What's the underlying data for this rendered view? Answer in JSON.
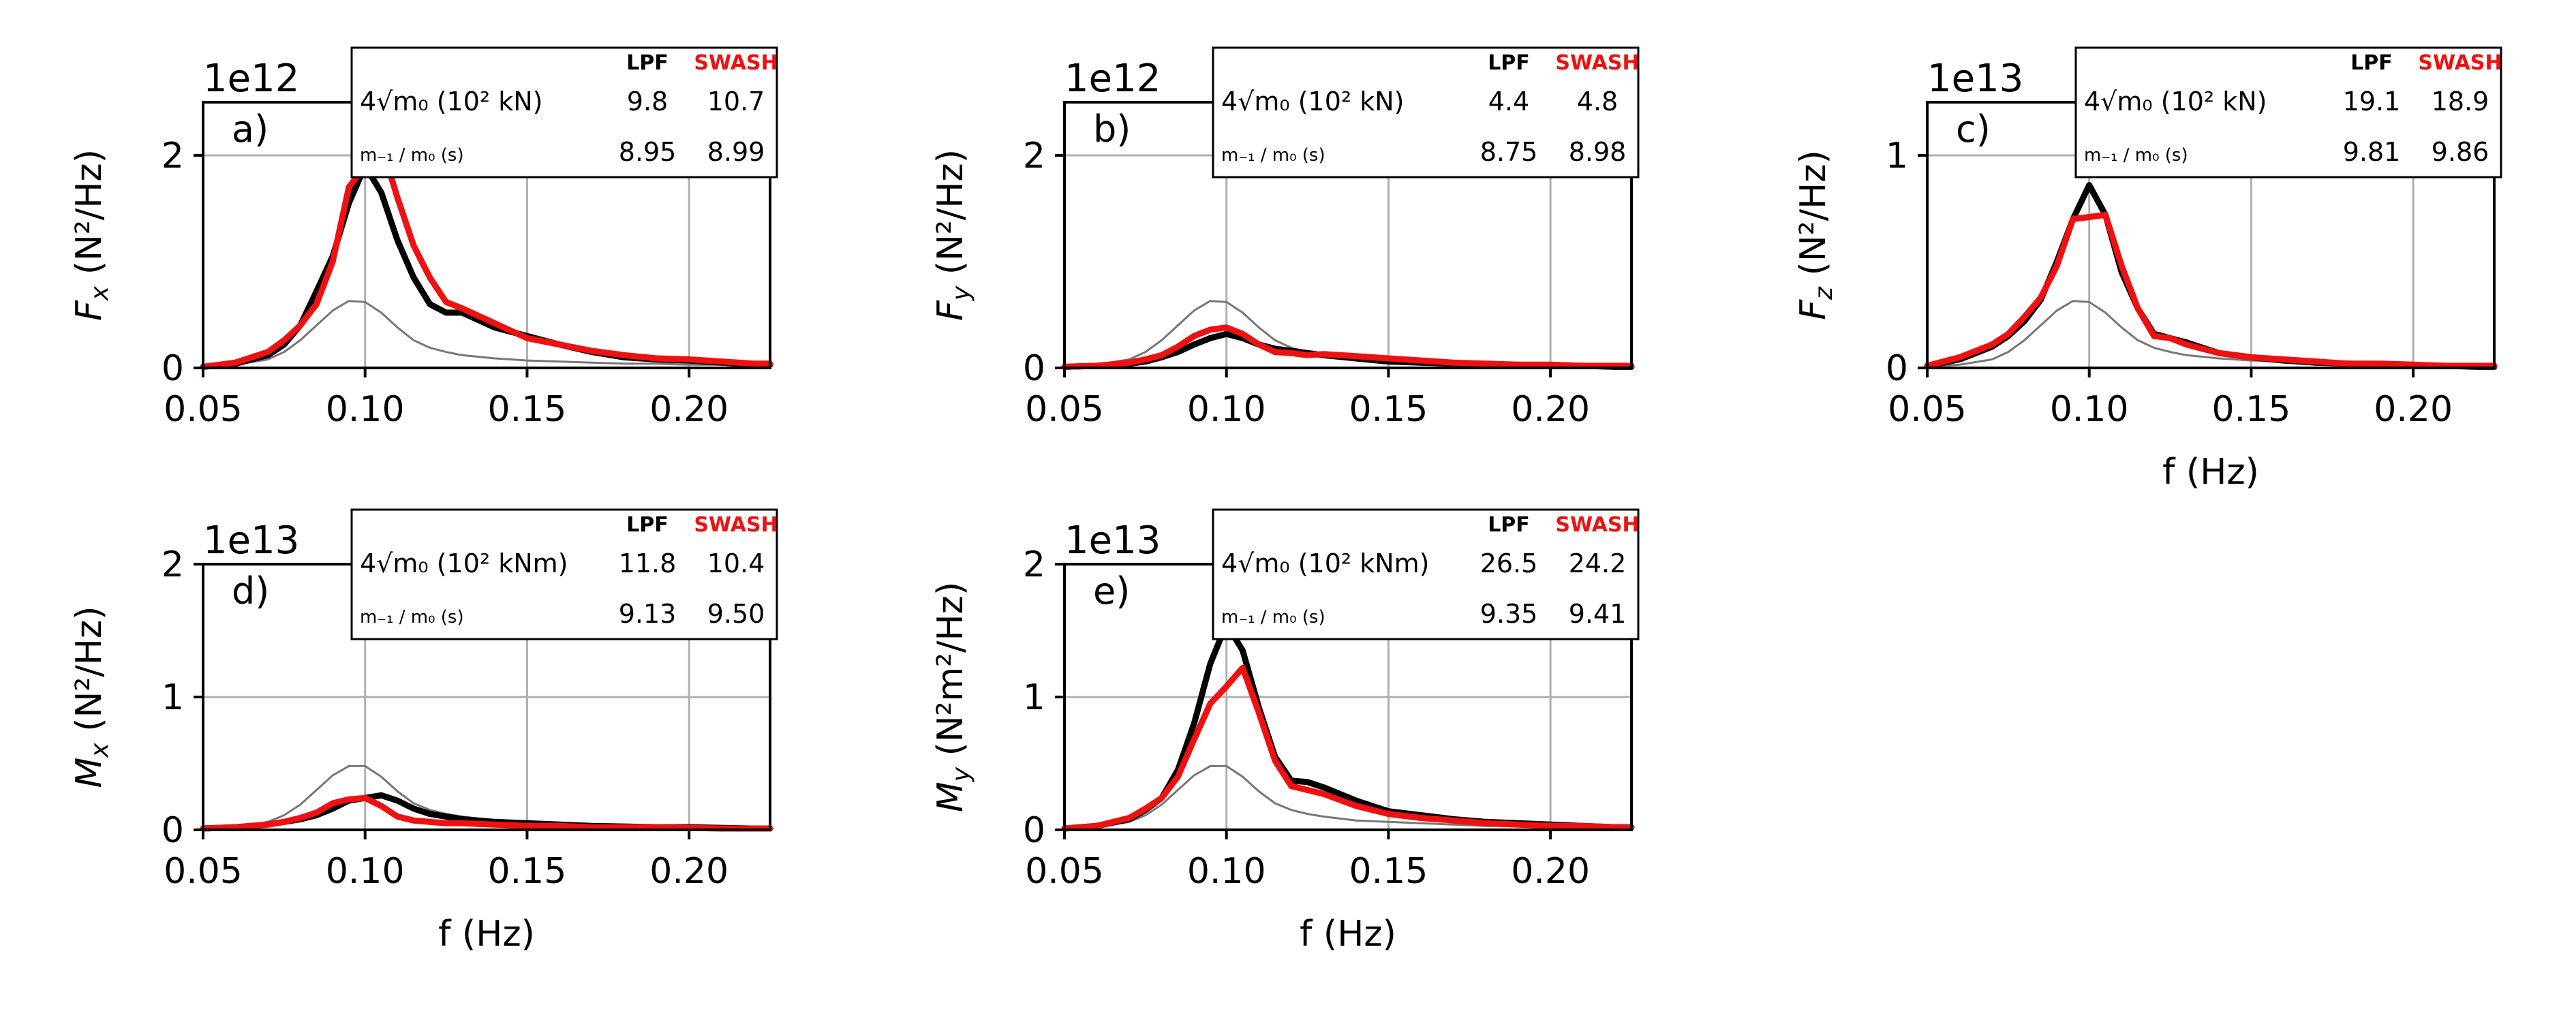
{
  "colors": {
    "lpf": "#000000",
    "swash": "#ee1111",
    "reference": "#777777",
    "grid": "#b0b0b0"
  },
  "table_header": {
    "lpf": "LPF",
    "swash": "SWASH"
  },
  "xlabel_common": "f (Hz)",
  "chart_data": [
    {
      "type": "line",
      "panel": "a)",
      "multiplier": "1e12",
      "ylabel_main": "F",
      "ylabel_sub": "x",
      "ylabel_units": "(N²/Hz)",
      "xlabel": "",
      "xlim": [
        0.05,
        0.225
      ],
      "ylim": [
        0,
        2.5
      ],
      "xticks": [
        0.05,
        0.1,
        0.15,
        0.2
      ],
      "xtick_labels": [
        "0.05",
        "0.10",
        "0.15",
        "0.20"
      ],
      "yticks": [
        0,
        2
      ],
      "ytick_labels": [
        "0",
        "2"
      ],
      "table": {
        "row1_label": "4√m₀ (10² kN)",
        "row1_lpf": "9.8",
        "row1_swash": "10.7",
        "row2_label": "m₋₁ / m₀ (s)",
        "row2_lpf": "8.95",
        "row2_swash": "8.99"
      },
      "x": [
        0.05,
        0.06,
        0.07,
        0.075,
        0.08,
        0.085,
        0.09,
        0.095,
        0.1,
        0.105,
        0.11,
        0.115,
        0.12,
        0.125,
        0.13,
        0.14,
        0.15,
        0.16,
        0.17,
        0.18,
        0.19,
        0.2,
        0.21,
        0.22,
        0.225
      ],
      "series": [
        {
          "name": "reference",
          "values": [
            0.01,
            0.03,
            0.08,
            0.15,
            0.26,
            0.4,
            0.54,
            0.63,
            0.62,
            0.52,
            0.38,
            0.26,
            0.19,
            0.15,
            0.12,
            0.09,
            0.07,
            0.06,
            0.05,
            0.04,
            0.04,
            0.03,
            0.03,
            0.02,
            0.02
          ]
        },
        {
          "name": "LPF",
          "values": [
            0.01,
            0.04,
            0.12,
            0.22,
            0.4,
            0.72,
            1.05,
            1.55,
            1.9,
            1.65,
            1.2,
            0.85,
            0.6,
            0.52,
            0.52,
            0.38,
            0.3,
            0.22,
            0.15,
            0.1,
            0.08,
            0.07,
            0.05,
            0.03,
            0.03
          ]
        },
        {
          "name": "SWASH",
          "values": [
            0.01,
            0.05,
            0.15,
            0.26,
            0.4,
            0.6,
            1.0,
            1.7,
            1.9,
            2.1,
            1.6,
            1.15,
            0.85,
            0.62,
            0.56,
            0.42,
            0.28,
            0.22,
            0.16,
            0.12,
            0.09,
            0.08,
            0.06,
            0.04,
            0.04
          ]
        }
      ]
    },
    {
      "type": "line",
      "panel": "b)",
      "multiplier": "1e12",
      "ylabel_main": "F",
      "ylabel_sub": "y",
      "ylabel_units": "(N²/Hz)",
      "xlabel": "",
      "xlim": [
        0.05,
        0.225
      ],
      "ylim": [
        0,
        2.5
      ],
      "xticks": [
        0.05,
        0.1,
        0.15,
        0.2
      ],
      "xtick_labels": [
        "0.05",
        "0.10",
        "0.15",
        "0.20"
      ],
      "yticks": [
        0,
        2
      ],
      "ytick_labels": [
        "0",
        "2"
      ],
      "table": {
        "row1_label": "4√m₀ (10² kN)",
        "row1_lpf": "4.4",
        "row1_swash": "4.8",
        "row2_label": "m₋₁ / m₀ (s)",
        "row2_lpf": "8.75",
        "row2_swash": "8.98"
      },
      "x": [
        0.05,
        0.06,
        0.07,
        0.075,
        0.08,
        0.085,
        0.09,
        0.095,
        0.1,
        0.105,
        0.11,
        0.115,
        0.12,
        0.125,
        0.13,
        0.14,
        0.15,
        0.16,
        0.17,
        0.18,
        0.19,
        0.2,
        0.21,
        0.22,
        0.225
      ],
      "series": [
        {
          "name": "reference",
          "values": [
            0.01,
            0.03,
            0.08,
            0.15,
            0.26,
            0.4,
            0.54,
            0.63,
            0.62,
            0.52,
            0.38,
            0.26,
            0.19,
            0.15,
            0.12,
            0.09,
            0.07,
            0.06,
            0.05,
            0.04,
            0.04,
            0.03,
            0.03,
            0.02,
            0.02
          ]
        },
        {
          "name": "LPF",
          "values": [
            0.01,
            0.02,
            0.04,
            0.06,
            0.1,
            0.15,
            0.22,
            0.28,
            0.32,
            0.28,
            0.22,
            0.18,
            0.16,
            0.14,
            0.12,
            0.09,
            0.06,
            0.05,
            0.04,
            0.03,
            0.02,
            0.02,
            0.02,
            0.01,
            0.01
          ]
        },
        {
          "name": "SWASH",
          "values": [
            0.01,
            0.02,
            0.05,
            0.08,
            0.12,
            0.2,
            0.3,
            0.36,
            0.38,
            0.32,
            0.22,
            0.15,
            0.14,
            0.12,
            0.13,
            0.11,
            0.09,
            0.07,
            0.05,
            0.04,
            0.03,
            0.03,
            0.02,
            0.02,
            0.02
          ]
        }
      ]
    },
    {
      "type": "line",
      "panel": "c)",
      "multiplier": "1e13",
      "ylabel_main": "F",
      "ylabel_sub": "z",
      "ylabel_units": "(N²/Hz)",
      "xlabel": "f (Hz)",
      "xlim": [
        0.05,
        0.225
      ],
      "ylim": [
        0,
        1.25
      ],
      "xticks": [
        0.05,
        0.1,
        0.15,
        0.2
      ],
      "xtick_labels": [
        "0.05",
        "0.10",
        "0.15",
        "0.20"
      ],
      "yticks": [
        0,
        1
      ],
      "ytick_labels": [
        "0",
        "1"
      ],
      "table": {
        "row1_label": "4√m₀ (10² kN)",
        "row1_lpf": "19.1",
        "row1_swash": "18.9",
        "row2_label": "m₋₁ / m₀ (s)",
        "row2_lpf": "9.81",
        "row2_swash": "9.86"
      },
      "x": [
        0.05,
        0.06,
        0.07,
        0.075,
        0.08,
        0.085,
        0.09,
        0.095,
        0.1,
        0.105,
        0.11,
        0.115,
        0.12,
        0.125,
        0.13,
        0.14,
        0.15,
        0.16,
        0.17,
        0.18,
        0.19,
        0.2,
        0.21,
        0.22,
        0.225
      ],
      "series": [
        {
          "name": "reference",
          "values": [
            0.005,
            0.015,
            0.04,
            0.075,
            0.13,
            0.2,
            0.27,
            0.315,
            0.31,
            0.26,
            0.19,
            0.13,
            0.095,
            0.075,
            0.06,
            0.045,
            0.035,
            0.03,
            0.025,
            0.02,
            0.02,
            0.015,
            0.015,
            0.01,
            0.01
          ]
        },
        {
          "name": "LPF",
          "values": [
            0.01,
            0.04,
            0.1,
            0.15,
            0.22,
            0.32,
            0.5,
            0.7,
            0.86,
            0.72,
            0.45,
            0.28,
            0.16,
            0.14,
            0.12,
            0.07,
            0.05,
            0.035,
            0.025,
            0.02,
            0.015,
            0.01,
            0.01,
            0.005,
            0.005
          ]
        },
        {
          "name": "SWASH",
          "values": [
            0.01,
            0.05,
            0.11,
            0.16,
            0.24,
            0.33,
            0.48,
            0.7,
            0.71,
            0.72,
            0.48,
            0.28,
            0.15,
            0.14,
            0.11,
            0.07,
            0.05,
            0.04,
            0.03,
            0.02,
            0.02,
            0.015,
            0.01,
            0.01,
            0.01
          ]
        }
      ]
    },
    {
      "type": "line",
      "panel": "d)",
      "multiplier": "1e13",
      "ylabel_main": "M",
      "ylabel_sub": "x",
      "ylabel_units": "(N²/Hz)",
      "xlabel": "f (Hz)",
      "xlim": [
        0.05,
        0.225
      ],
      "ylim": [
        0,
        2
      ],
      "xticks": [
        0.05,
        0.1,
        0.15,
        0.2
      ],
      "xtick_labels": [
        "0.05",
        "0.10",
        "0.15",
        "0.20"
      ],
      "yticks": [
        0,
        1,
        2
      ],
      "ytick_labels": [
        "0",
        "1",
        "2"
      ],
      "table": {
        "row1_label": "4√m₀ (10² kNm)",
        "row1_lpf": "11.8",
        "row1_swash": "10.4",
        "row2_label": "m₋₁ / m₀ (s)",
        "row2_lpf": "9.13",
        "row2_swash": "9.50"
      },
      "x": [
        0.05,
        0.06,
        0.07,
        0.075,
        0.08,
        0.085,
        0.09,
        0.095,
        0.1,
        0.105,
        0.11,
        0.115,
        0.12,
        0.125,
        0.13,
        0.14,
        0.15,
        0.16,
        0.17,
        0.18,
        0.19,
        0.2,
        0.21,
        0.22,
        0.225
      ],
      "series": [
        {
          "name": "reference",
          "values": [
            0.005,
            0.02,
            0.06,
            0.11,
            0.19,
            0.3,
            0.41,
            0.48,
            0.48,
            0.4,
            0.29,
            0.2,
            0.15,
            0.12,
            0.1,
            0.07,
            0.06,
            0.05,
            0.04,
            0.03,
            0.03,
            0.02,
            0.02,
            0.02,
            0.02
          ]
        },
        {
          "name": "LPF",
          "values": [
            0.01,
            0.02,
            0.04,
            0.06,
            0.08,
            0.11,
            0.16,
            0.22,
            0.24,
            0.26,
            0.22,
            0.16,
            0.12,
            0.1,
            0.08,
            0.06,
            0.05,
            0.04,
            0.03,
            0.025,
            0.02,
            0.02,
            0.015,
            0.01,
            0.01
          ]
        },
        {
          "name": "SWASH",
          "values": [
            0.01,
            0.02,
            0.04,
            0.06,
            0.09,
            0.13,
            0.2,
            0.23,
            0.24,
            0.18,
            0.1,
            0.07,
            0.06,
            0.05,
            0.05,
            0.04,
            0.03,
            0.03,
            0.02,
            0.02,
            0.02,
            0.015,
            0.01,
            0.01,
            0.01
          ]
        }
      ]
    },
    {
      "type": "line",
      "panel": "e)",
      "multiplier": "1e13",
      "ylabel_main": "M",
      "ylabel_sub": "y",
      "ylabel_units": "(N²m²/Hz)",
      "xlabel": "f (Hz)",
      "xlim": [
        0.05,
        0.225
      ],
      "ylim": [
        0,
        2
      ],
      "xticks": [
        0.05,
        0.1,
        0.15,
        0.2
      ],
      "xtick_labels": [
        "0.05",
        "0.10",
        "0.15",
        "0.20"
      ],
      "yticks": [
        0,
        1,
        2
      ],
      "ytick_labels": [
        "0",
        "1",
        "2"
      ],
      "table": {
        "row1_label": "4√m₀ (10² kNm)",
        "row1_lpf": "26.5",
        "row1_swash": "24.2",
        "row2_label": "m₋₁ / m₀ (s)",
        "row2_lpf": "9.35",
        "row2_swash": "9.41"
      },
      "x": [
        0.05,
        0.06,
        0.07,
        0.075,
        0.08,
        0.085,
        0.09,
        0.095,
        0.1,
        0.105,
        0.11,
        0.115,
        0.12,
        0.125,
        0.13,
        0.14,
        0.15,
        0.16,
        0.17,
        0.18,
        0.19,
        0.2,
        0.21,
        0.22,
        0.225
      ],
      "series": [
        {
          "name": "reference",
          "values": [
            0.005,
            0.02,
            0.06,
            0.11,
            0.19,
            0.3,
            0.41,
            0.48,
            0.48,
            0.4,
            0.29,
            0.2,
            0.15,
            0.12,
            0.1,
            0.07,
            0.06,
            0.05,
            0.04,
            0.03,
            0.03,
            0.02,
            0.02,
            0.02,
            0.02
          ]
        },
        {
          "name": "LPF",
          "values": [
            0.01,
            0.03,
            0.08,
            0.15,
            0.24,
            0.45,
            0.8,
            1.25,
            1.55,
            1.35,
            0.92,
            0.55,
            0.37,
            0.36,
            0.32,
            0.22,
            0.14,
            0.11,
            0.08,
            0.06,
            0.05,
            0.04,
            0.03,
            0.02,
            0.02
          ]
        },
        {
          "name": "SWASH",
          "values": [
            0.01,
            0.03,
            0.09,
            0.16,
            0.24,
            0.4,
            0.68,
            0.95,
            1.08,
            1.22,
            0.88,
            0.52,
            0.33,
            0.3,
            0.27,
            0.18,
            0.12,
            0.09,
            0.07,
            0.05,
            0.04,
            0.03,
            0.03,
            0.02,
            0.02
          ]
        }
      ]
    }
  ]
}
